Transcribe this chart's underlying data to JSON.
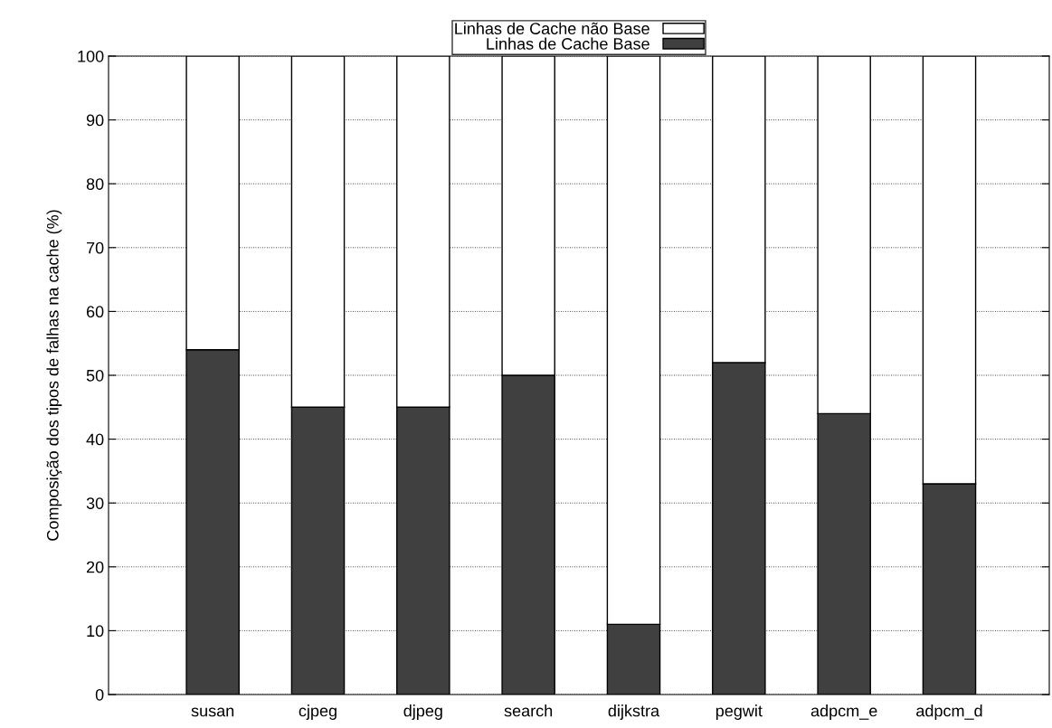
{
  "chart_data": {
    "type": "bar",
    "stacked": true,
    "ylabel": "Composição dos tipos de falhas na cache (%)",
    "categories": [
      "susan",
      "cjpeg",
      "djpeg",
      "search",
      "dijkstra",
      "pegwit",
      "adpcm_e",
      "adpcm_d"
    ],
    "series": [
      {
        "name": "Linhas de Cache Base",
        "color": "#404040",
        "values": [
          54,
          45,
          45,
          50,
          11,
          52,
          44,
          33
        ]
      },
      {
        "name": "Linhas de Cache não Base",
        "color": "#ffffff",
        "values": [
          46,
          55,
          55,
          50,
          89,
          48,
          56,
          67
        ]
      }
    ],
    "ylim": [
      0,
      100
    ],
    "yticks": [
      0,
      10,
      20,
      30,
      40,
      50,
      60,
      70,
      80,
      90,
      100
    ],
    "grid": "y",
    "legend": "top"
  }
}
